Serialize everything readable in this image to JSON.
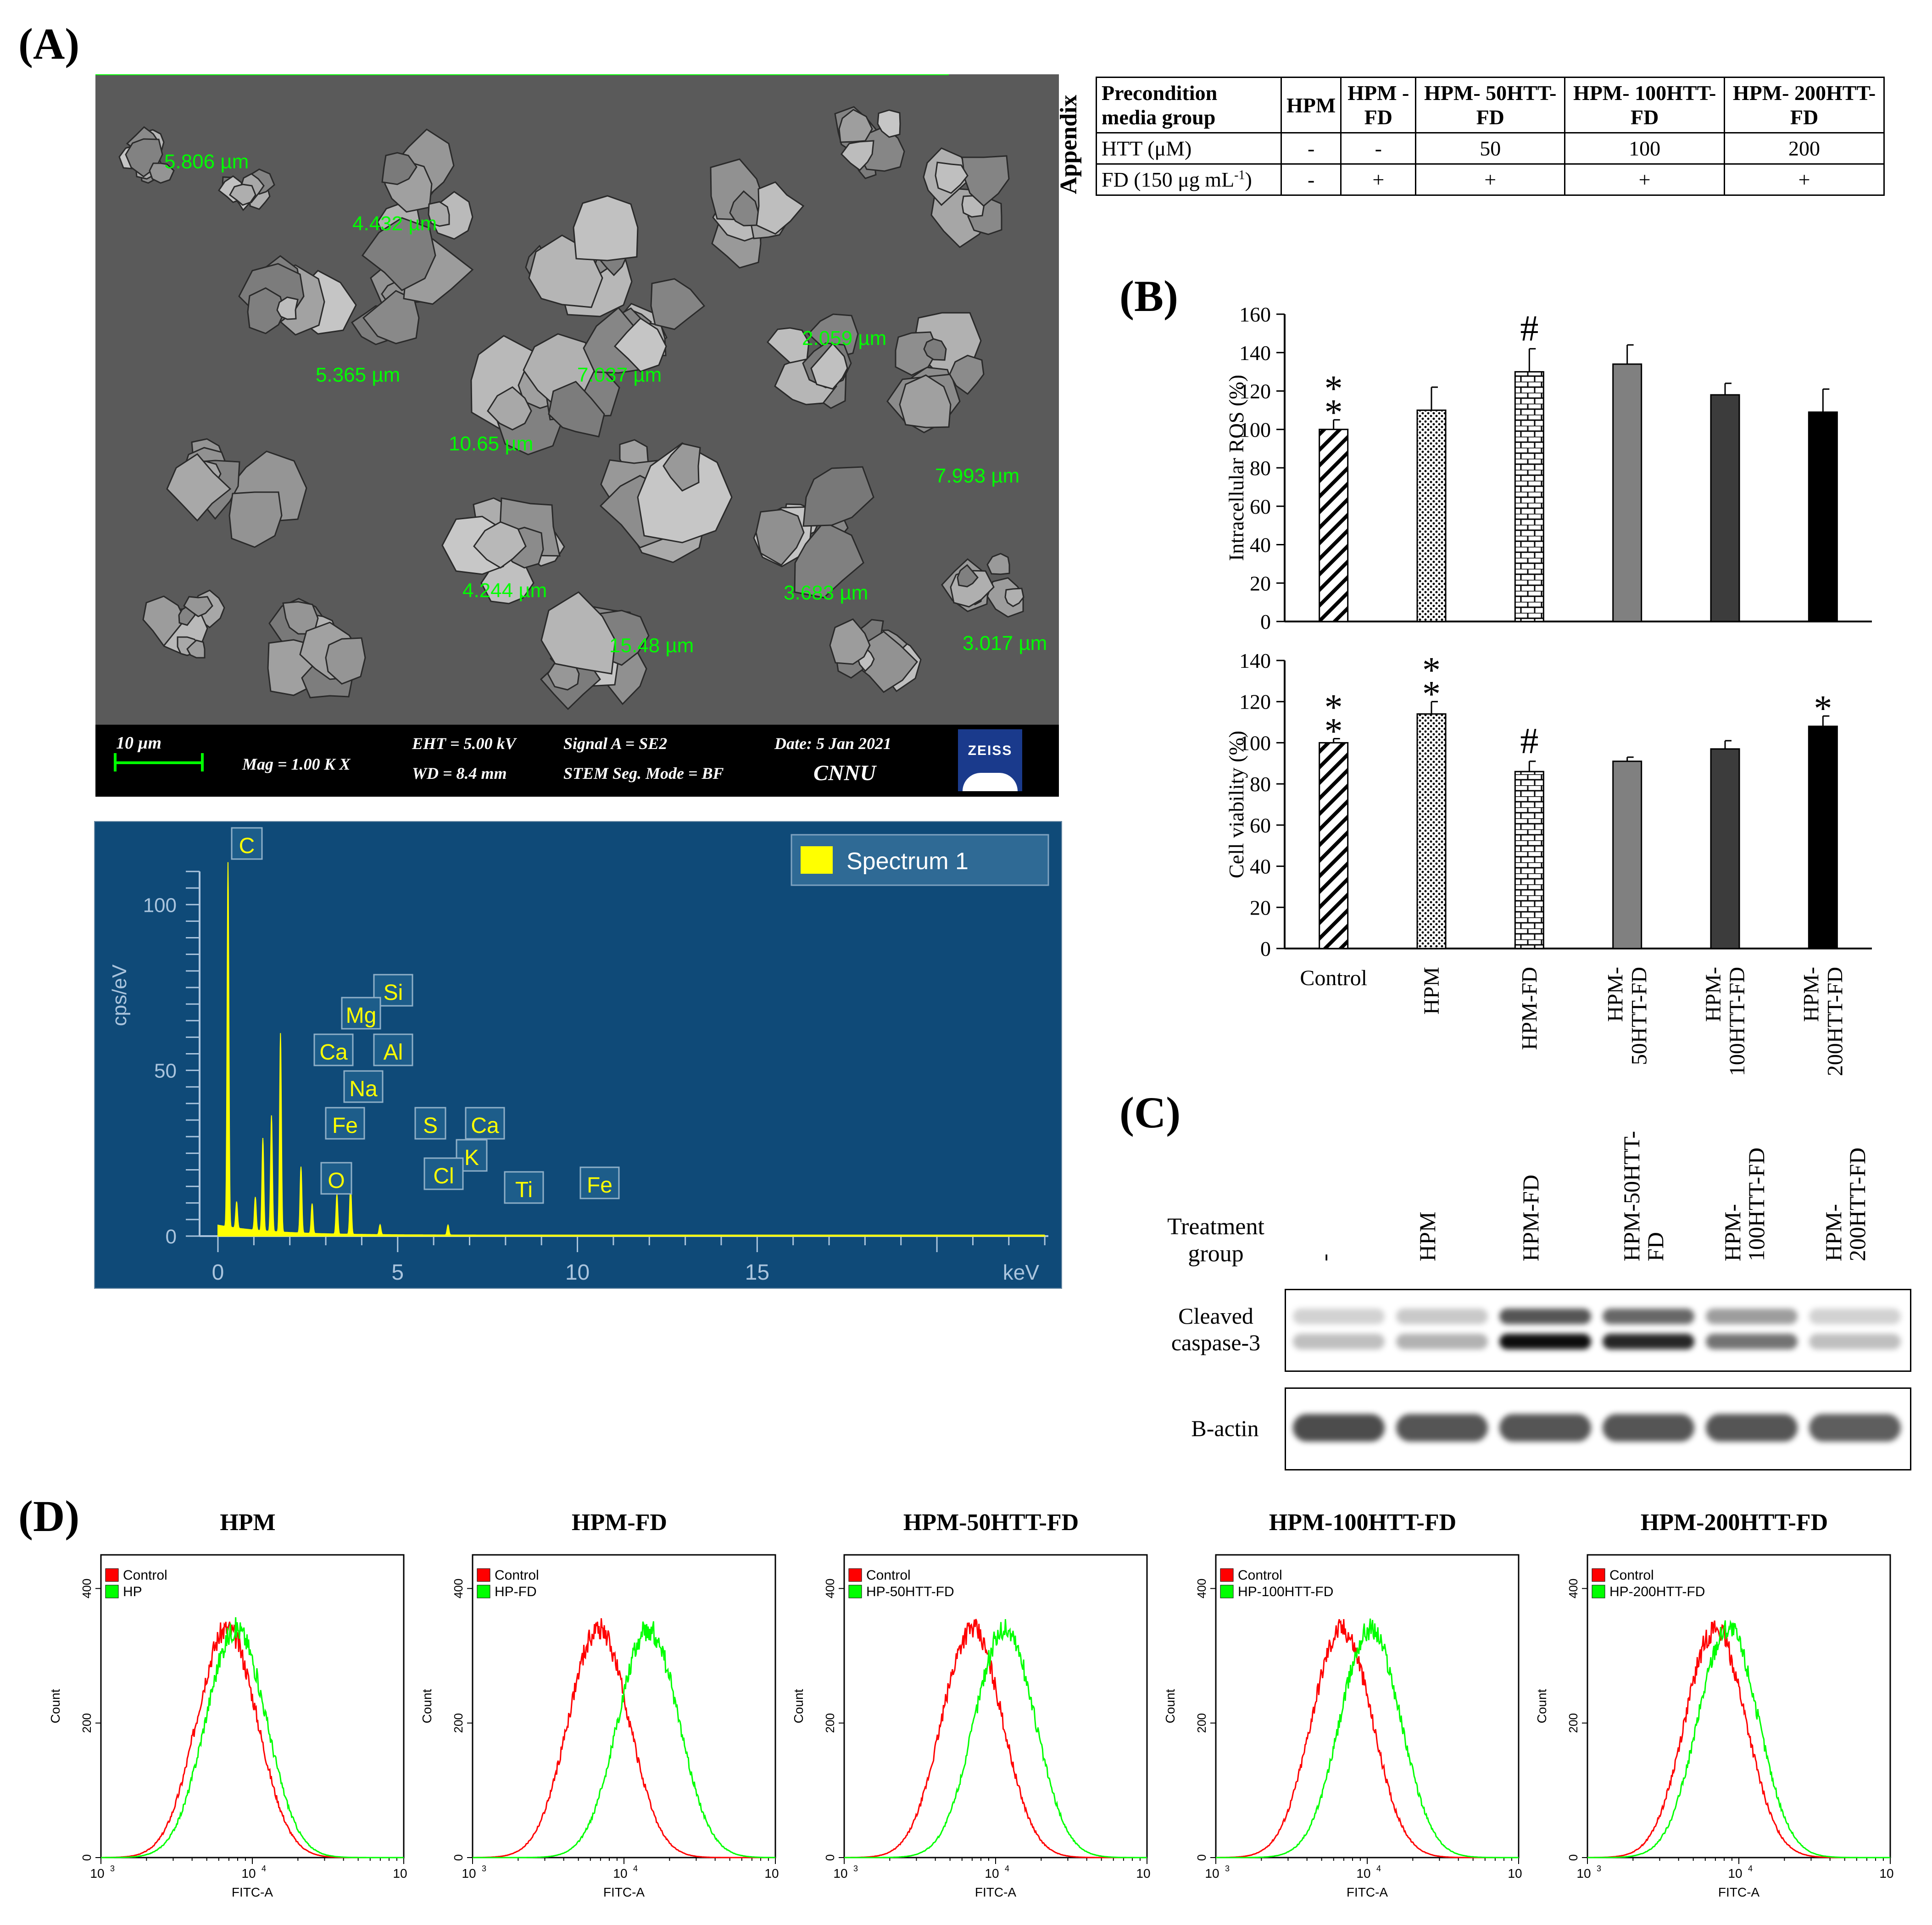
{
  "panel_labels": {
    "a": "(A)",
    "b": "(B)",
    "c": "(C)",
    "d": "(D)"
  },
  "sem": {
    "measurements": [
      "5.806 µm",
      "4.432 µm",
      "2.059 µm",
      "5.365 µm",
      "7.037 µm",
      "10.65 µm",
      "7.993 µm",
      "4.244 µm",
      "3.683 µm",
      "15.48 µm",
      "3.017 µm"
    ],
    "scale_bar": "10 µm",
    "mag": "Mag =   1.00 K X",
    "eht": "EHT =  5.00 kV",
    "wd": "WD =  8.4 mm",
    "signal": "Signal A = SE2",
    "stem": "STEM Seg. Mode = BF",
    "date": "Date: 5 Jan 2021",
    "org": "CNNU",
    "logo": "ZEISS"
  },
  "eds": {
    "legend": "Spectrum 1",
    "ylabel": "cps/eV",
    "xlabel": "keV",
    "y_ticks": [
      "0",
      "50",
      "100"
    ],
    "x_ticks": [
      "0",
      "5",
      "10",
      "15"
    ],
    "elements": [
      "C",
      "Si",
      "Mg",
      "Ca",
      "Al",
      "Na",
      "Fe",
      "O",
      "S",
      "Ca",
      "K",
      "Cl",
      "Ti",
      "Fe"
    ]
  },
  "appendix": {
    "title": "Appendix",
    "header": [
      "Precondition media group",
      "HPM",
      "HPM -FD",
      "HPM- 50HTT-FD",
      "HPM- 100HTT-FD",
      "HPM- 200HTT-FD"
    ],
    "row1": [
      "HTT (μM)",
      "-",
      "-",
      "50",
      "100",
      "200"
    ],
    "row2_label": "FD (150 μg mL",
    "row2_sup": "-1",
    "row2_close": ")",
    "row2": [
      "-",
      "+",
      "+",
      "+",
      "+"
    ]
  },
  "chart_data": [
    {
      "type": "bar",
      "ylabel": "Intracellular ROS (%)",
      "categories": [
        "Control",
        "HPM",
        "HPM-FD",
        "HPM-50HTT-FD",
        "HPM-100HTT-FD",
        "HPM-200HTT-FD"
      ],
      "values": [
        100,
        110,
        130,
        134,
        118,
        109
      ],
      "errors": [
        5,
        12,
        12,
        10,
        6,
        12
      ],
      "annotations": [
        "**",
        "",
        "#",
        "",
        "",
        ""
      ],
      "ylim": [
        0,
        160
      ],
      "y_ticks": [
        "0",
        "20",
        "40",
        "60",
        "80",
        "100",
        "120",
        "140",
        "160"
      ],
      "colors": [
        "hatch-diag",
        "dots",
        "brick",
        "#808080",
        "#3c3c3c",
        "#000000"
      ]
    },
    {
      "type": "bar",
      "ylabel": "Cell viability (%)",
      "categories": [
        "Control",
        "HPM",
        "HPM-FD",
        "HPM-50HTT-FD",
        "HPM-100HTT-FD",
        "HPM-200HTT-FD"
      ],
      "values": [
        100,
        114,
        86,
        91,
        97,
        108
      ],
      "errors": [
        2,
        6,
        5,
        2,
        4,
        5
      ],
      "annotations": [
        "**",
        "**",
        "#",
        "",
        "",
        "*"
      ],
      "ylim": [
        0,
        140
      ],
      "y_ticks": [
        "0",
        "20",
        "40",
        "60",
        "80",
        "100",
        "120",
        "140"
      ],
      "x_labels": [
        "Control",
        "HPM",
        "HPM-FD",
        "HPM- 50HTT-FD",
        "HPM- 100HTT-FD",
        "HPM- 200HTT-FD"
      ]
    }
  ],
  "blot": {
    "treatment_label": "Treatment group",
    "groups": [
      "-",
      "HPM",
      "HPM-FD",
      "HPM-50HTT- FD",
      "HPM- 100HTT-FD",
      "HPM- 200HTT-FD"
    ],
    "row1_label": "Cleaved caspase-3",
    "row2_label": "B-actin",
    "row1_intensity": [
      0.25,
      0.3,
      0.95,
      0.85,
      0.55,
      0.25
    ],
    "row2_intensity": [
      1,
      0.95,
      0.95,
      0.95,
      0.95,
      0.9
    ]
  },
  "flow": {
    "panels": [
      {
        "title": "HPM",
        "legend_control": "Control",
        "legend_sample": "HP",
        "control_peak": 6800,
        "sample_peak": 7800
      },
      {
        "title": "HPM-FD",
        "legend_control": "Control",
        "legend_sample": "HP-FD",
        "control_peak": 6800,
        "sample_peak": 14500
      },
      {
        "title": "HPM-50HTT-FD",
        "legend_control": "Control",
        "legend_sample": "HP-50HTT-FD",
        "control_peak": 7000,
        "sample_peak": 11500
      },
      {
        "title": "HPM-100HTT-FD",
        "legend_control": "Control",
        "legend_sample": "HP-100HTT-FD",
        "control_peak": 6800,
        "sample_peak": 10500
      },
      {
        "title": "HPM-200HTT-FD",
        "legend_control": "Control",
        "legend_sample": "HP-200HTT-FD",
        "control_peak": 7000,
        "sample_peak": 8500
      }
    ],
    "xlabel": "FITC-A",
    "ylabel": "Count",
    "y_ticks": [
      "0",
      "200",
      "400"
    ],
    "x_ticks": [
      "10",
      "10",
      "10"
    ],
    "x_ticks_sup": [
      "3",
      "4",
      "5"
    ],
    "control_color": "#ff0000",
    "sample_color": "#00ff00"
  }
}
